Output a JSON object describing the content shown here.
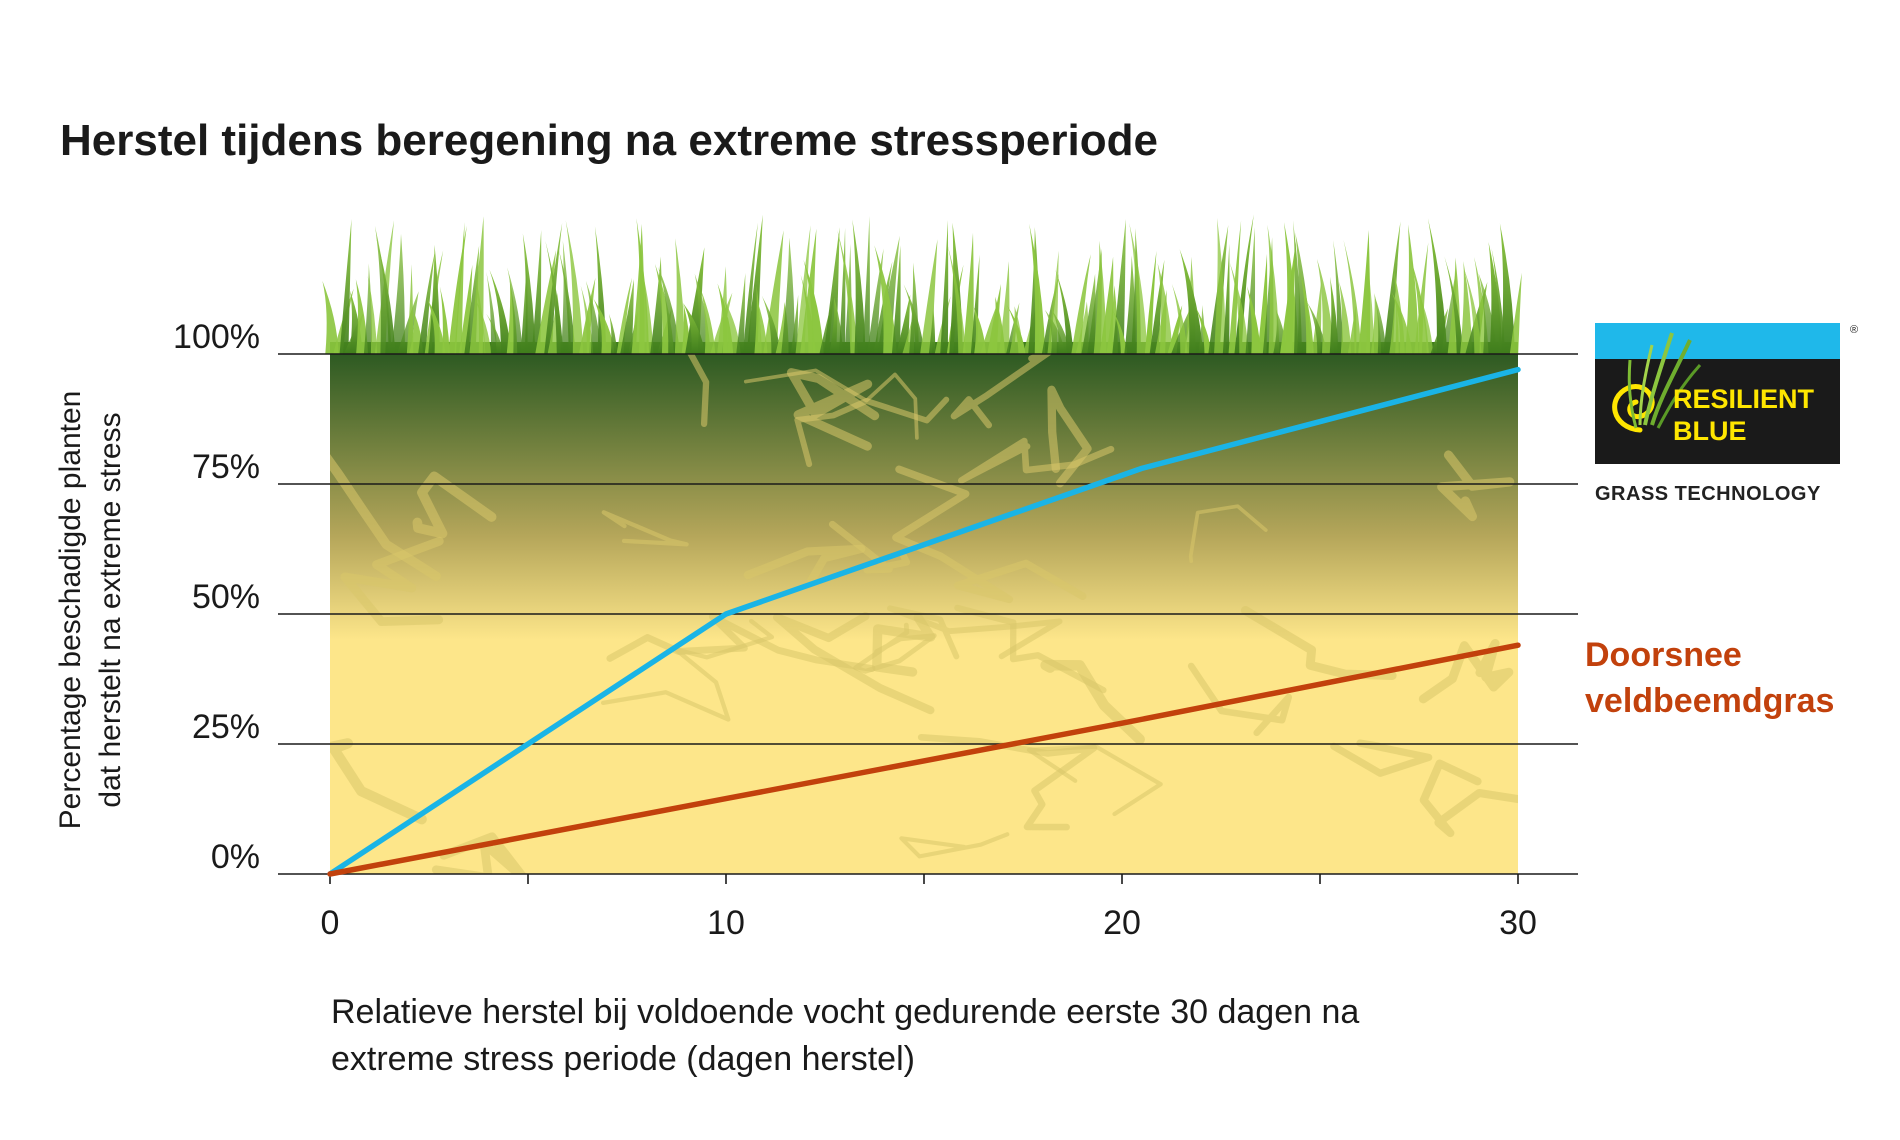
{
  "chart_data": {
    "type": "line",
    "title": "Herstel tijdens beregening na extreme stressperiode",
    "ylabel_lines": [
      "Percentage beschadigde planten",
      "dat herstelt na extreme stress"
    ],
    "xlabel_lines": [
      "Relatieve herstel bij voldoende vocht gedurende eerste 30 dagen na",
      "extreme stress periode (dagen herstel)"
    ],
    "xlim": [
      0,
      30
    ],
    "ylim": [
      0,
      100
    ],
    "x_ticks": [
      0,
      10,
      20,
      30
    ],
    "x_minor_ticks": [
      5,
      15,
      25
    ],
    "y_ticks": [
      0,
      25,
      50,
      75,
      100
    ],
    "y_tick_labels": [
      "0%",
      "25%",
      "50%",
      "75%",
      "100%"
    ],
    "grid": true,
    "series": [
      {
        "id": "resilient-blue",
        "color": "#1ab4e6",
        "points": [
          [
            0,
            0
          ],
          [
            10,
            50
          ],
          [
            20.5,
            78
          ],
          [
            30,
            97
          ]
        ]
      },
      {
        "id": "doorsnee",
        "name_lines": [
          "Doorsnee",
          "veldbeemdgras"
        ],
        "color": "#c2410c",
        "points": [
          [
            0,
            0
          ],
          [
            10,
            14.5
          ],
          [
            20,
            29
          ],
          [
            30,
            44
          ]
        ]
      }
    ]
  },
  "logo": {
    "line1": "RESILIENT",
    "line2": "BLUE",
    "tagline": "GRASS TECHNOLOGY",
    "registered": "®",
    "colors": {
      "top_band": "#1fb8ea",
      "box": "#1a1a1a",
      "text": "#ffe600",
      "tagline": "#222222"
    }
  },
  "colors": {
    "soil_top": "#2d5a22",
    "soil_mid": "#b5a65a",
    "soil_bottom": "#fde68a",
    "grass_dark": "#3f7d1c",
    "grass_light": "#8cc63f",
    "gridline": "#1a1a1a"
  }
}
